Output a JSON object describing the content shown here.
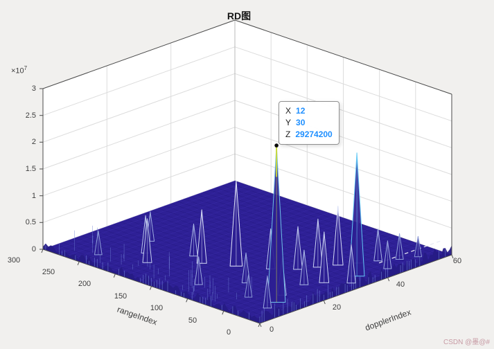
{
  "watermark": {
    "text": "CSDN @墨@#"
  },
  "colors": {
    "figure_bg": "#f1f0ee",
    "wall": "#ffffff",
    "grid": "#dcdcdc",
    "axis_text": "#3d3d3d",
    "box_edge": "#4a4a4a",
    "mesh_base": "#2e2096",
    "mesh_dark": "#1f1677",
    "mesh_light": "#4b3cc2",
    "fuzz": "#261b85",
    "hair": "#6d7fd4",
    "dash": "#e8eaf6",
    "marker": "#0a0a0a",
    "datatip_value": "#1e8fff",
    "watermark": "#c79aa4"
  },
  "chart_data": {
    "type": "surface",
    "title": "RD图",
    "legend": null,
    "grid": true,
    "view": "3d",
    "x_axis": {
      "label": "dopplerIndex",
      "min": 0,
      "max": 60,
      "ticks": [
        0,
        20,
        40,
        60
      ],
      "tick_labels": [
        "0",
        "20",
        "40",
        "60"
      ]
    },
    "y_axis": {
      "label": "rangeIndex",
      "min": 0,
      "max": 300,
      "ticks": [
        0,
        50,
        100,
        150,
        200,
        250,
        300
      ],
      "tick_labels": [
        "0",
        "50",
        "100",
        "150",
        "200",
        "250",
        "300"
      ]
    },
    "z_axis": {
      "label": "",
      "min": 0,
      "max": 30000000,
      "ticks": [
        0,
        0.5,
        1,
        1.5,
        2,
        2.5,
        3
      ],
      "tick_scale": 10000000,
      "tick_labels": [
        "0",
        "0.5",
        "1",
        "1.5",
        "2",
        "2.5",
        "3"
      ],
      "exponent_base": "×10",
      "exponent_power": "7"
    },
    "datatip": {
      "x_label": "X",
      "x_value": "12",
      "y_label": "Y",
      "y_value": "30",
      "z_label": "Z",
      "z_value": "29274200"
    },
    "selected_point": {
      "dopplerIndex": 12,
      "rangeIndex": 30,
      "amplitude": 29274200
    },
    "dash_ridge": {
      "r": 12,
      "z": 2200000,
      "d_start": 40,
      "d_end": 58
    },
    "peaks": [
      {
        "d": 12,
        "r": 30,
        "z": 29274200,
        "c": "#c9d83b"
      },
      {
        "d": 36,
        "r": 25,
        "z": 23000000,
        "c": "#63c9f5"
      },
      {
        "d": 22,
        "r": 130,
        "z": 16000000,
        "c": "#e4e8fa"
      },
      {
        "d": 38,
        "r": 60,
        "z": 11000000,
        "c": "#d7ddf6"
      },
      {
        "d": 18,
        "r": 160,
        "z": 10000000,
        "c": "#d7ddf6"
      },
      {
        "d": 28,
        "r": 35,
        "z": 9500000,
        "c": "#cdd5f3"
      },
      {
        "d": 34,
        "r": 70,
        "z": 9000000,
        "c": "#cdd5f3"
      },
      {
        "d": 42,
        "r": 50,
        "z": 8500000,
        "c": "#c3cdef"
      },
      {
        "d": 10,
        "r": 200,
        "z": 8200000,
        "c": "#c3cdef"
      },
      {
        "d": 30,
        "r": 80,
        "z": 8000000,
        "c": "#c3cdef"
      },
      {
        "d": 26,
        "r": 100,
        "z": 7500000,
        "c": "#b9c4ec"
      },
      {
        "d": 32,
        "r": 15,
        "z": 7200000,
        "c": "#b9c4ec"
      },
      {
        "d": 14,
        "r": 220,
        "z": 7000000,
        "c": "#b9c4ec"
      },
      {
        "d": 16,
        "r": 40,
        "z": 7000000,
        "c": "#aab7e6"
      },
      {
        "d": 24,
        "r": 45,
        "z": 6500000,
        "c": "#aab7e6"
      },
      {
        "d": 20,
        "r": 180,
        "z": 6000000,
        "c": "#aab7e6"
      },
      {
        "d": 46,
        "r": 40,
        "z": 6000000,
        "c": "#aab7e6"
      },
      {
        "d": 8,
        "r": 25,
        "z": 6000000,
        "c": "#9dabe0"
      },
      {
        "d": 16,
        "r": 90,
        "z": 5600000,
        "c": "#9dabe0"
      },
      {
        "d": 20,
        "r": 240,
        "z": 5500000,
        "c": "#9dabe0"
      },
      {
        "d": 8,
        "r": 120,
        "z": 5200000,
        "c": "#9dabe0"
      },
      {
        "d": 44,
        "r": 18,
        "z": 5200000,
        "c": "#9dabe0"
      },
      {
        "d": 50,
        "r": 28,
        "z": 4800000,
        "c": "#90a0da"
      },
      {
        "d": 6,
        "r": 250,
        "z": 4500000,
        "c": "#90a0da"
      },
      {
        "d": 10,
        "r": 60,
        "z": 4200000,
        "c": "#8896d4"
      },
      {
        "d": 54,
        "r": 20,
        "z": 3800000,
        "c": "#8896d4"
      }
    ]
  }
}
